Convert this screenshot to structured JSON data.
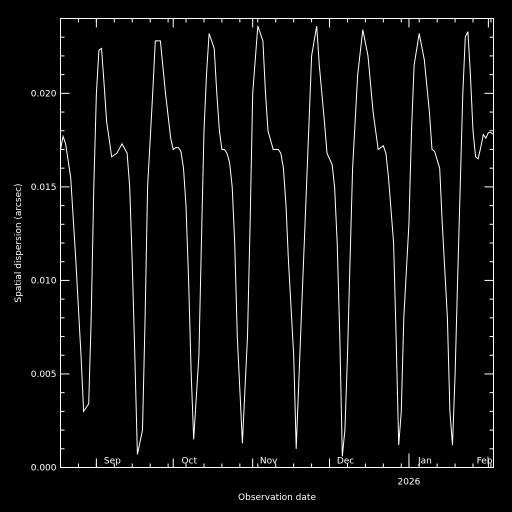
{
  "chart_data": {
    "type": "line",
    "title": "",
    "xlabel": "Observation date",
    "ylabel": "Spatial dispersion (arcsec)",
    "ylim": [
      0,
      0.024
    ],
    "y_ticks": [
      {
        "value": 0.0,
        "label": "0.000"
      },
      {
        "value": 0.005,
        "label": "0.005"
      },
      {
        "value": 0.01,
        "label": "0.010"
      },
      {
        "value": 0.015,
        "label": "0.015"
      },
      {
        "value": 0.02,
        "label": "0.020"
      }
    ],
    "xlim": [
      "2025-08-18",
      "2026-02-03"
    ],
    "x_month_ticks": [
      {
        "date": "2025-09-01",
        "label": "Sep"
      },
      {
        "date": "2025-10-01",
        "label": "Oct"
      },
      {
        "date": "2025-11-01",
        "label": "Nov"
      },
      {
        "date": "2025-12-01",
        "label": "Dec"
      },
      {
        "date": "2026-01-01",
        "label": "Jan"
      },
      {
        "date": "2026-02-01",
        "label": "Feb"
      }
    ],
    "x_year_ticks": [
      {
        "date": "2026-01-01",
        "label": "2026"
      }
    ],
    "grid": false,
    "series": [
      {
        "x": [
          "2025-08-18",
          "2025-08-19",
          "2025-08-20",
          "2025-08-22",
          "2025-08-24",
          "2025-08-26",
          "2025-08-27",
          "2025-08-29",
          "2025-08-30",
          "2025-08-31",
          "2025-09-01",
          "2025-09-02",
          "2025-09-03",
          "2025-09-04",
          "2025-09-05",
          "2025-09-07",
          "2025-09-09",
          "2025-09-11",
          "2025-09-13",
          "2025-09-14",
          "2025-09-15",
          "2025-09-16",
          "2025-09-17",
          "2025-09-19",
          "2025-09-20",
          "2025-09-21",
          "2025-09-23",
          "2025-09-24",
          "2025-09-26",
          "2025-09-28",
          "2025-09-30",
          "2025-10-01",
          "2025-10-02",
          "2025-10-03",
          "2025-10-04",
          "2025-10-05",
          "2025-10-06",
          "2025-10-07",
          "2025-10-08",
          "2025-10-09",
          "2025-10-11",
          "2025-10-12",
          "2025-10-13",
          "2025-10-14",
          "2025-10-15",
          "2025-10-17",
          "2025-10-18",
          "2025-10-19",
          "2025-10-20",
          "2025-10-21",
          "2025-10-22",
          "2025-10-23",
          "2025-10-24",
          "2025-10-25",
          "2025-10-26",
          "2025-10-28",
          "2025-10-30",
          "2025-10-31",
          "2025-11-01",
          "2025-11-03",
          "2025-11-05",
          "2025-11-06",
          "2025-11-07",
          "2025-11-09",
          "2025-11-11",
          "2025-11-12",
          "2025-11-13",
          "2025-11-14",
          "2025-11-15",
          "2025-11-17",
          "2025-11-18",
          "2025-11-20",
          "2025-11-22",
          "2025-11-24",
          "2025-11-26",
          "2025-11-27",
          "2025-11-29",
          "2025-11-30",
          "2025-12-02",
          "2025-12-03",
          "2025-12-04",
          "2025-12-05",
          "2025-12-06",
          "2025-12-07",
          "2025-12-08",
          "2025-12-09",
          "2025-12-10",
          "2025-12-12",
          "2025-12-14",
          "2025-12-16",
          "2025-12-18",
          "2025-12-20",
          "2025-12-22",
          "2025-12-23",
          "2025-12-24",
          "2025-12-26",
          "2025-12-27",
          "2025-12-28",
          "2025-12-29",
          "2025-12-30",
          "2026-01-01",
          "2026-01-02",
          "2026-01-03",
          "2026-01-05",
          "2026-01-07",
          "2026-01-09",
          "2026-01-10",
          "2026-01-11",
          "2026-01-13",
          "2026-01-14",
          "2026-01-16",
          "2026-01-17",
          "2026-01-18",
          "2026-01-19",
          "2026-01-20",
          "2026-01-21",
          "2026-01-22",
          "2026-01-23",
          "2026-01-24",
          "2026-01-25",
          "2026-01-26",
          "2026-01-27",
          "2026-01-28",
          "2026-01-29",
          "2026-01-30",
          "2026-01-31",
          "2026-02-01",
          "2026-02-02",
          "2026-02-03"
        ],
        "y": [
          0.017,
          0.0177,
          0.0173,
          0.0155,
          0.011,
          0.006,
          0.003,
          0.0034,
          0.008,
          0.015,
          0.02,
          0.0223,
          0.0224,
          0.0205,
          0.0185,
          0.0166,
          0.0168,
          0.0173,
          0.0168,
          0.015,
          0.011,
          0.006,
          0.0007,
          0.002,
          0.008,
          0.015,
          0.02,
          0.0228,
          0.0228,
          0.02,
          0.0176,
          0.017,
          0.0171,
          0.0171,
          0.0169,
          0.016,
          0.014,
          0.01,
          0.005,
          0.0015,
          0.006,
          0.012,
          0.018,
          0.021,
          0.0232,
          0.0224,
          0.02,
          0.018,
          0.017,
          0.017,
          0.0168,
          0.0163,
          0.015,
          0.012,
          0.007,
          0.0013,
          0.007,
          0.013,
          0.02,
          0.0236,
          0.0228,
          0.02,
          0.018,
          0.017,
          0.017,
          0.0168,
          0.016,
          0.014,
          0.011,
          0.006,
          0.001,
          0.008,
          0.015,
          0.022,
          0.0236,
          0.0215,
          0.0185,
          0.0168,
          0.0162,
          0.015,
          0.012,
          0.007,
          0.0006,
          0.002,
          0.006,
          0.011,
          0.016,
          0.021,
          0.0234,
          0.022,
          0.019,
          0.017,
          0.0172,
          0.0168,
          0.0155,
          0.012,
          0.007,
          0.0012,
          0.003,
          0.008,
          0.013,
          0.018,
          0.0215,
          0.0232,
          0.0218,
          0.019,
          0.017,
          0.0169,
          0.016,
          0.013,
          0.008,
          0.003,
          0.0012,
          0.005,
          0.01,
          0.015,
          0.02,
          0.023,
          0.0233,
          0.021,
          0.018,
          0.0166,
          0.0165,
          0.0171,
          0.0178,
          0.0176,
          0.0179,
          0.0179,
          0.0178
        ]
      }
    ]
  }
}
